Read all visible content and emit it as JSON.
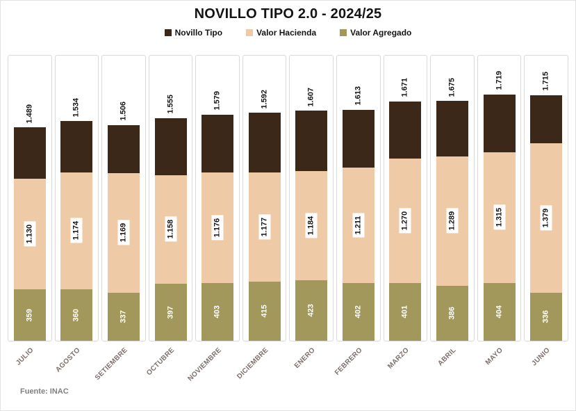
{
  "title": "NOVILLO TIPO 2.0 - 2024/25",
  "source_note": "Fuente: INAC",
  "legend": [
    {
      "label": "Novillo Tipo",
      "color": "#3b2818"
    },
    {
      "label": "Valor Hacienda",
      "color": "#efcaa7"
    },
    {
      "label": "Valor Agregado",
      "color": "#a3985b"
    }
  ],
  "colors": {
    "novillo_tipo": "#3b2818",
    "valor_hacienda": "#efcaa7",
    "valor_agregado": "#a3985b",
    "panel_border": "#d9d9d9",
    "axis_label": "#7d706c"
  },
  "chart_data": {
    "type": "bar",
    "stacked": true,
    "title": "NOVILLO TIPO 2.0 - 2024/25",
    "legend_position": "top",
    "axes_visible": false,
    "grid": false,
    "value_relation": "Novillo Tipo = Valor Hacienda + Valor Agregado",
    "ylim": [
      0,
      1800
    ],
    "categories": [
      "JULIO",
      "AGOSTO",
      "SETIEMBRE",
      "OCTUBRE",
      "NOVIEMBRE",
      "DICIEMBRE",
      "ENERO",
      "FEBRERO",
      "MARZO",
      "ABRIL",
      "MAYO",
      "JUNIO"
    ],
    "series": [
      {
        "name": "Novillo Tipo",
        "color": "#3b2818",
        "values": [
          1489,
          1534,
          1506,
          1555,
          1579,
          1592,
          1607,
          1613,
          1671,
          1675,
          1719,
          1715
        ],
        "labels": [
          "1.489",
          "1.534",
          "1.506",
          "1.555",
          "1.579",
          "1.592",
          "1.607",
          "1.613",
          "1.671",
          "1.675",
          "1.719",
          "1.715"
        ]
      },
      {
        "name": "Valor Hacienda",
        "color": "#efcaa7",
        "values": [
          1130,
          1174,
          1169,
          1158,
          1176,
          1177,
          1184,
          1211,
          1270,
          1289,
          1315,
          1379
        ],
        "labels": [
          "1.130",
          "1.174",
          "1.169",
          "1.158",
          "1.176",
          "1.177",
          "1.184",
          "1.211",
          "1.270",
          "1.289",
          "1.315",
          "1.379"
        ]
      },
      {
        "name": "Valor Agregado",
        "color": "#a3985b",
        "values": [
          359,
          360,
          337,
          397,
          403,
          415,
          423,
          402,
          401,
          386,
          404,
          336
        ],
        "labels": [
          "359",
          "360",
          "337",
          "397",
          "403",
          "415",
          "423",
          "402",
          "401",
          "386",
          "404",
          "336"
        ]
      }
    ]
  }
}
